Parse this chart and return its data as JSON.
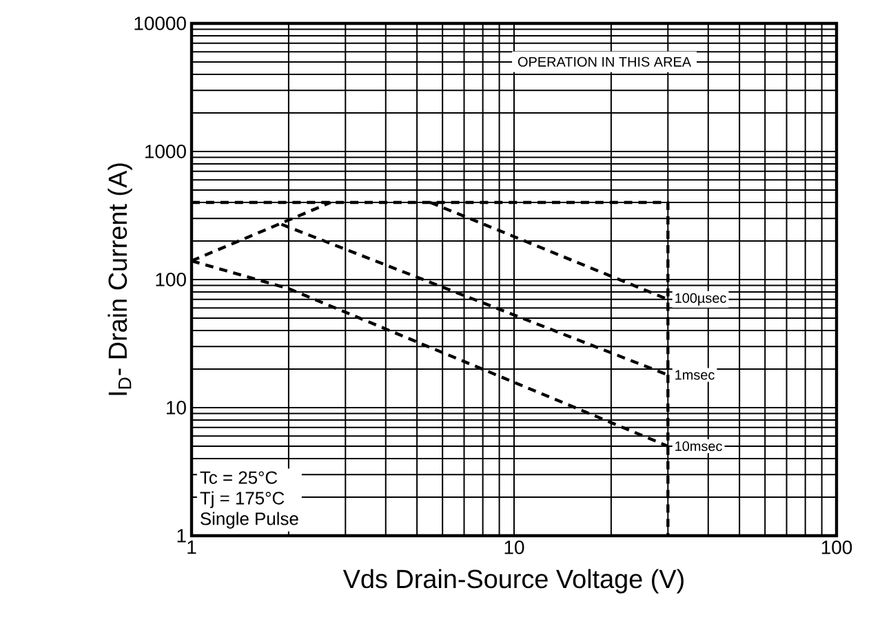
{
  "chart_data": {
    "type": "line",
    "xlabel": "Vds Drain-Source Voltage (V)",
    "ylabel": "I$_{D}$- Drain Current (A)",
    "log": "xy",
    "grid": true,
    "legend": false,
    "marker": "none",
    "line_style": "dashed",
    "xlim": [
      1,
      100
    ],
    "ylim": [
      1,
      10000
    ],
    "xticks": [
      1,
      10,
      100
    ],
    "yticks": [
      1,
      10,
      100,
      1000,
      10000
    ],
    "annotations": [
      "OPERATION IN THIS AREA",
      "Tc = 25°C",
      "Tj = 175°C",
      "Single Pulse"
    ],
    "series": [
      {
        "color": "#000000",
        "x": [
          1,
          30,
          30
        ],
        "values": [
          400,
          400,
          1
        ]
      },
      {
        "color": "#000000",
        "x": [
          1,
          2.7
        ],
        "values": [
          140,
          400
        ]
      },
      {
        "name": "100µsec",
        "color": "#000000",
        "x": [
          5.5,
          30
        ],
        "values": [
          400,
          70
        ]
      },
      {
        "name": "1msec",
        "color": "#000000",
        "x": [
          1.9,
          30
        ],
        "values": [
          270,
          18
        ]
      },
      {
        "name": "10msec",
        "color": "#000000",
        "x": [
          1,
          2,
          30
        ],
        "values": [
          140,
          85,
          5
        ]
      }
    ]
  }
}
